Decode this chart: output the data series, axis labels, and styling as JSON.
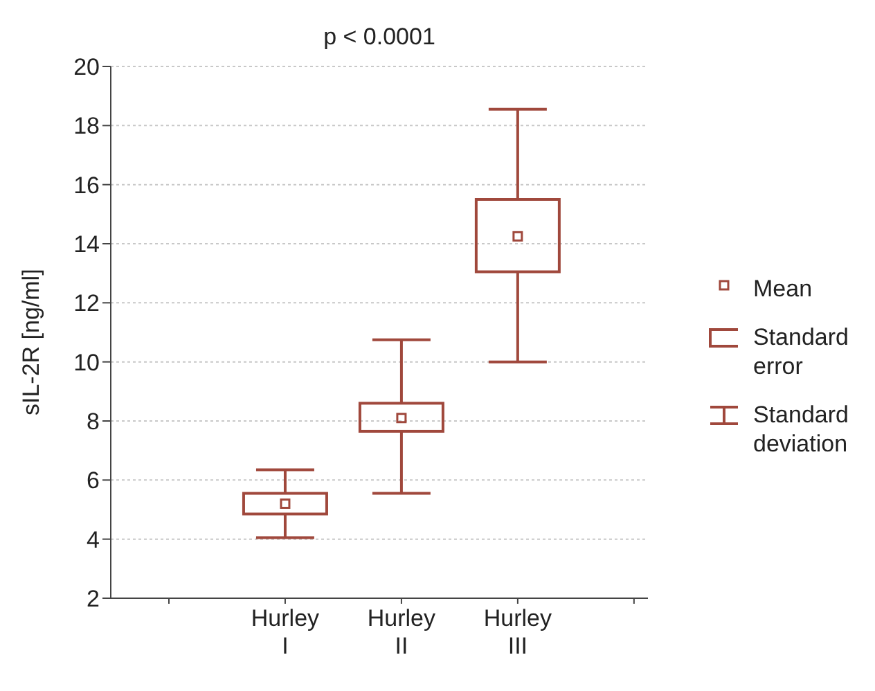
{
  "chart_data": {
    "type": "box",
    "title": "p < 0.0001",
    "ylabel": "sIL-2R [ng/ml]",
    "categories": [
      "Hurley I",
      "Hurley II",
      "Hurley III"
    ],
    "boxes": [
      {
        "low": 4.05,
        "q1": 4.85,
        "q3": 5.55,
        "high": 6.35,
        "mean": 5.2
      },
      {
        "low": 5.55,
        "q1": 7.65,
        "q3": 8.6,
        "high": 10.75,
        "mean": 8.1
      },
      {
        "low": 10.0,
        "q1": 13.05,
        "q3": 15.5,
        "high": 18.55,
        "mean": 14.25
      }
    ],
    "color": "#a0483c",
    "ylim": [
      2,
      20
    ],
    "yticks": [
      2,
      4,
      6,
      8,
      10,
      12,
      14,
      16,
      18,
      20
    ],
    "grid": "y",
    "marker": "square",
    "annotations": [
      "Mean",
      "Standard error",
      "Standard deviation"
    ]
  }
}
